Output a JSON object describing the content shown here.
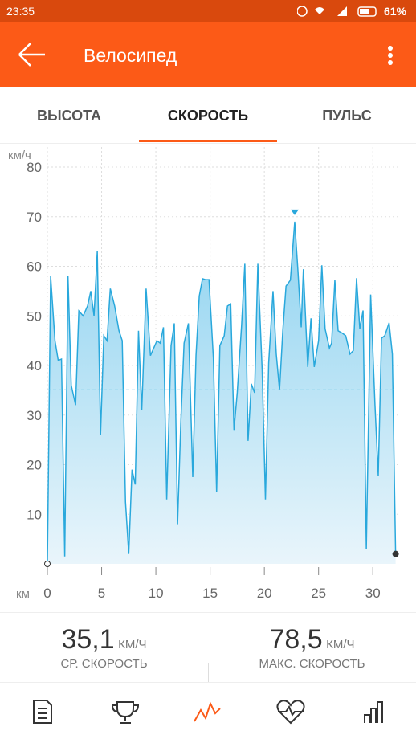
{
  "status_bar": {
    "time": "23:35",
    "battery": "61%"
  },
  "app_bar": {
    "title": "Велосипед"
  },
  "tabs": [
    "ВЫСОТА",
    "СКОРОСТЬ",
    "ПУЛЬС"
  ],
  "chart_data": {
    "type": "area",
    "y_label": "км/ч",
    "x_label": "км",
    "color": "#29a8dc",
    "xlim": [
      0,
      32.5
    ],
    "xticks": [
      0,
      5,
      10,
      15,
      20,
      25,
      30
    ],
    "ylim": [
      0,
      80
    ],
    "yticks": [
      10,
      20,
      30,
      40,
      50,
      60,
      70,
      80
    ],
    "grid": true,
    "average": 35.1,
    "x": [
      0,
      0.3,
      0.7,
      1.0,
      1.3,
      1.6,
      1.9,
      2.2,
      2.6,
      2.9,
      3.3,
      3.7,
      4.0,
      4.3,
      4.6,
      4.9,
      5.2,
      5.5,
      5.8,
      6.2,
      6.6,
      6.9,
      7.2,
      7.5,
      7.8,
      8.1,
      8.4,
      8.7,
      9.1,
      9.5,
      9.8,
      10.1,
      10.4,
      10.7,
      11.0,
      11.4,
      11.7,
      12.0,
      12.3,
      12.6,
      13.0,
      13.4,
      13.7,
      14.0,
      14.3,
      14.6,
      14.9,
      15.3,
      15.6,
      15.9,
      16.3,
      16.6,
      16.9,
      17.2,
      17.5,
      17.9,
      18.2,
      18.5,
      18.8,
      19.1,
      19.4,
      19.8,
      20.1,
      20.4,
      20.8,
      21.1,
      21.4,
      21.7,
      22.0,
      22.4,
      22.8,
      23.1,
      23.4,
      23.6,
      24.0,
      24.3,
      24.6,
      25.0,
      25.3,
      25.6,
      26.0,
      26.2,
      26.5,
      26.8,
      27.2,
      27.5,
      27.9,
      28.2,
      28.5,
      28.8,
      29.1,
      29.4,
      29.8,
      30.2,
      30.5,
      30.8,
      31.1,
      31.5,
      31.8,
      32.1
    ],
    "values": [
      0,
      58,
      45,
      41,
      41.3,
      1.5,
      58,
      36,
      32,
      51,
      50,
      52,
      55,
      50,
      63,
      26,
      46,
      45,
      55.5,
      52,
      47,
      45,
      12.5,
      2,
      19,
      16,
      47,
      31,
      55.5,
      42,
      43.5,
      45,
      44.5,
      47.7,
      13,
      44,
      48.5,
      8,
      28.5,
      44.5,
      48.5,
      17.5,
      42,
      54,
      57.5,
      57.3,
      57.3,
      41.5,
      14.5,
      44,
      46,
      52,
      52.4,
      27,
      34.5,
      48,
      60.5,
      24.8,
      36.3,
      34.5,
      60.5,
      39,
      13,
      40.5,
      55,
      42.3,
      35,
      47,
      56,
      57.2,
      69,
      59,
      47.7,
      59.4,
      39.7,
      49.5,
      39.7,
      45,
      60.2,
      47.4,
      43.5,
      44.5,
      57.2,
      47,
      46.5,
      46,
      42.3,
      43,
      57.6,
      47.4,
      51.1,
      3,
      54.3,
      32,
      17.8,
      45.5,
      46,
      48.6,
      42.3,
      2
    ]
  },
  "stats": {
    "avg": {
      "value": "35,1",
      "unit": "КМ/Ч",
      "label": "СР. СКОРОСТЬ"
    },
    "max": {
      "value": "78,5",
      "unit": "КМ/Ч",
      "label": "МАКС. СКОРОСТЬ"
    }
  }
}
